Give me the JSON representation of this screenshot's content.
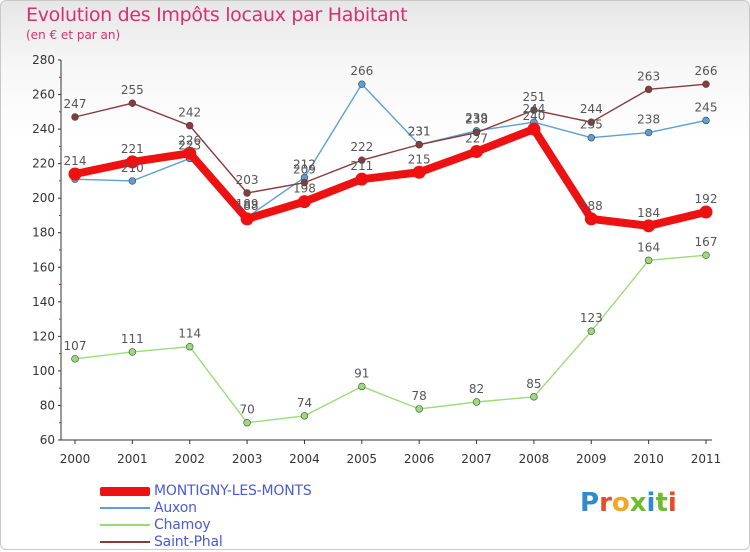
{
  "header": {
    "title": "Evolution des Impôts locaux par Habitant",
    "subtitle": "(en € et par an)"
  },
  "logo": {
    "letters": [
      "P",
      "r",
      "o",
      "x",
      "i",
      "t",
      "i"
    ],
    "colors": [
      "#2e8bd0",
      "#e84a2f",
      "#f5a623",
      "#6cbd2a",
      "#2e8bd0",
      "#6cbd2a",
      "#e84a2f"
    ]
  },
  "chart_data": {
    "type": "line",
    "title": "Evolution des Impôts locaux par Habitant",
    "subtitle": "(en € et par an)",
    "xlabel": "",
    "ylabel": "",
    "categories": [
      "2000",
      "2001",
      "2002",
      "2003",
      "2004",
      "2005",
      "2006",
      "2007",
      "2008",
      "2009",
      "2010",
      "2011"
    ],
    "ylim": [
      60,
      280
    ],
    "yticks": [
      60,
      80,
      100,
      120,
      140,
      160,
      180,
      200,
      220,
      240,
      260,
      280
    ],
    "grid": false,
    "legend_position": "bottom-left",
    "series": [
      {
        "name": "MONTIGNY-LES-MONTS",
        "color": "#ee1111",
        "emphasis": true,
        "values": [
          214,
          221,
          226,
          188,
          198,
          211,
          215,
          227,
          240,
          188,
          184,
          192
        ],
        "labels": [
          "214",
          "221",
          "226",
          "188",
          "198",
          "211",
          "215",
          "227",
          "240",
          "188",
          "184",
          "192"
        ]
      },
      {
        "name": "Auxon",
        "color": "#5b9fd8",
        "emphasis": false,
        "values": [
          211,
          210,
          223,
          189,
          212,
          266,
          231,
          239,
          244,
          235,
          238,
          245
        ],
        "labels": [
          "",
          "210",
          "223",
          "189",
          "212",
          "266",
          "231",
          "239",
          "244",
          "235",
          "238",
          "245"
        ]
      },
      {
        "name": "Chamoy",
        "color": "#99dd77",
        "emphasis": false,
        "values": [
          107,
          111,
          114,
          70,
          74,
          91,
          78,
          82,
          85,
          123,
          164,
          167
        ],
        "labels": [
          "107",
          "111",
          "114",
          "70",
          "74",
          "91",
          "78",
          "82",
          "85",
          "123",
          "164",
          "167"
        ]
      },
      {
        "name": "Saint-Phal",
        "color": "#8b3a3a",
        "emphasis": false,
        "values": [
          247,
          255,
          242,
          203,
          209,
          222,
          231,
          238,
          251,
          244,
          263,
          266
        ],
        "labels": [
          "247",
          "255",
          "242",
          "203",
          "209",
          "222",
          "231",
          "238",
          "251",
          "244",
          "263",
          "266"
        ]
      }
    ]
  }
}
